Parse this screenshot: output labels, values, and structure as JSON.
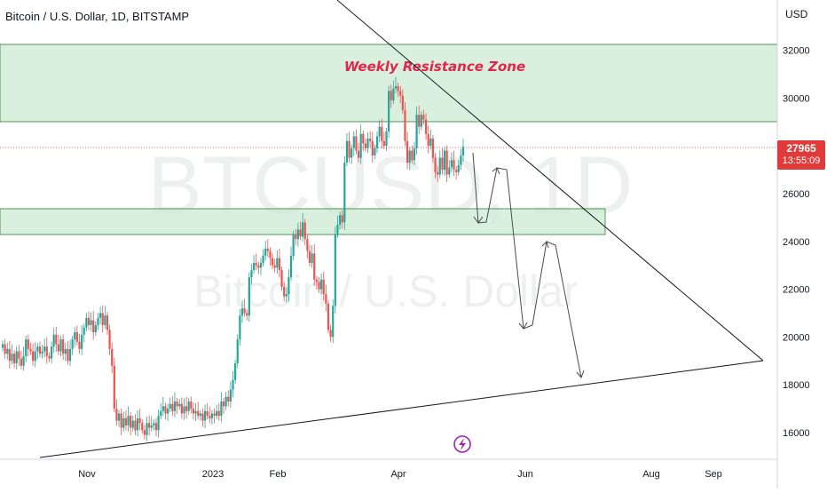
{
  "header": {
    "symbol_title": "Bitcoin / U.S. Dollar, 1D, BITSTAMP",
    "currency": "USD"
  },
  "watermark": {
    "ticker": "BTCUSD, 1D",
    "name": "Bitcoin / U.S. Dollar"
  },
  "price_tag": {
    "price": "27965",
    "countdown": "13:55:09",
    "color": "#e03a3a"
  },
  "colors": {
    "up": "#26a69a",
    "down": "#ef5350",
    "zone_fill": "#cdebd4",
    "zone_edge": "#2e7d32",
    "annotation": "#e0264a"
  },
  "icons": {
    "replay": "lightning-bolt-icon"
  },
  "chart_data": {
    "type": "candlestick",
    "title": "Bitcoin / U.S. Dollar, 1D, BITSTAMP",
    "ylabel": "USD",
    "ylim": [
      15000,
      33500
    ],
    "yticks": [
      "16000",
      "18000",
      "20000",
      "22000",
      "24000",
      "26000",
      "28000",
      "30000",
      "32000"
    ],
    "xticks": [
      "Nov",
      "2023",
      "Feb",
      "Apr",
      "Jun",
      "Aug",
      "Sep"
    ],
    "last_price": 27965,
    "grid": false,
    "series": [
      {
        "date_from": "2022-09-15",
        "date_to": "2023-05-14",
        "close": [
          19700,
          19300,
          19500,
          19000,
          19300,
          18900,
          19400,
          19100,
          18800,
          19200,
          19900,
          19500,
          19400,
          19000,
          19400,
          19600,
          19300,
          19400,
          19600,
          19200,
          19100,
          19600,
          20100,
          19700,
          19400,
          19900,
          19300,
          19500,
          19000,
          19500,
          19900,
          20200,
          19800,
          19500,
          20100,
          20400,
          20800,
          20500,
          20700,
          20200,
          20500,
          20800,
          21000,
          20500,
          20900,
          20300,
          19500,
          18800,
          17000,
          16500,
          16800,
          16200,
          16600,
          16300,
          16700,
          16200,
          16500,
          16100,
          16600,
          16400,
          16100,
          15900,
          16400,
          16200,
          16300,
          16400,
          16100,
          16700,
          16900,
          17100,
          16800,
          17000,
          17200,
          16900,
          17300,
          17100,
          17200,
          16800,
          17100,
          16900,
          17300,
          17000,
          16800,
          16900,
          16700,
          16800,
          16500,
          16900,
          16700,
          16600,
          16800,
          16700,
          16900,
          16700,
          17300,
          17100,
          17500,
          17300,
          17800,
          18200,
          18900,
          19900,
          20900,
          21200,
          21000,
          20900,
          22500,
          22800,
          23100,
          23000,
          22900,
          23100,
          23400,
          23700,
          23600,
          23300,
          23000,
          22900,
          23300,
          22800,
          22100,
          21700,
          21800,
          22500,
          23400,
          24300,
          24100,
          24500,
          24200,
          24800,
          24100,
          23600,
          23100,
          23500,
          22400,
          22300,
          22000,
          22400,
          21800,
          21400,
          20300,
          20000,
          21300,
          24300,
          24700,
          25100,
          24800,
          27300,
          28200,
          27500,
          27900,
          28400,
          27800,
          27500,
          28500,
          28100,
          27900,
          28300,
          28200,
          27600,
          27900,
          28400,
          28800,
          28200,
          28000,
          28600,
          30300,
          29900,
          30400,
          30500,
          30300,
          30100,
          29500,
          28200,
          27300,
          27800,
          27400,
          27900,
          29300,
          28800,
          29300,
          29100,
          28500,
          28000,
          28300,
          27500,
          26900,
          26800,
          27500,
          27000,
          27800,
          26800,
          27100,
          27400,
          27000,
          26900,
          27200,
          27600,
          27965
        ],
        "note": "approximate closes read off the candles"
      }
    ],
    "zones": [
      {
        "label": "Weekly Resistance Zone",
        "from": 29000,
        "to": 32300
      },
      {
        "label": "",
        "from": 24400,
        "to": 25500
      }
    ],
    "annotations": [
      "Weekly Resistance Zone"
    ],
    "projection_path_prices": [
      27700,
      24700,
      27100,
      26900,
      20700,
      24100,
      18300
    ]
  }
}
